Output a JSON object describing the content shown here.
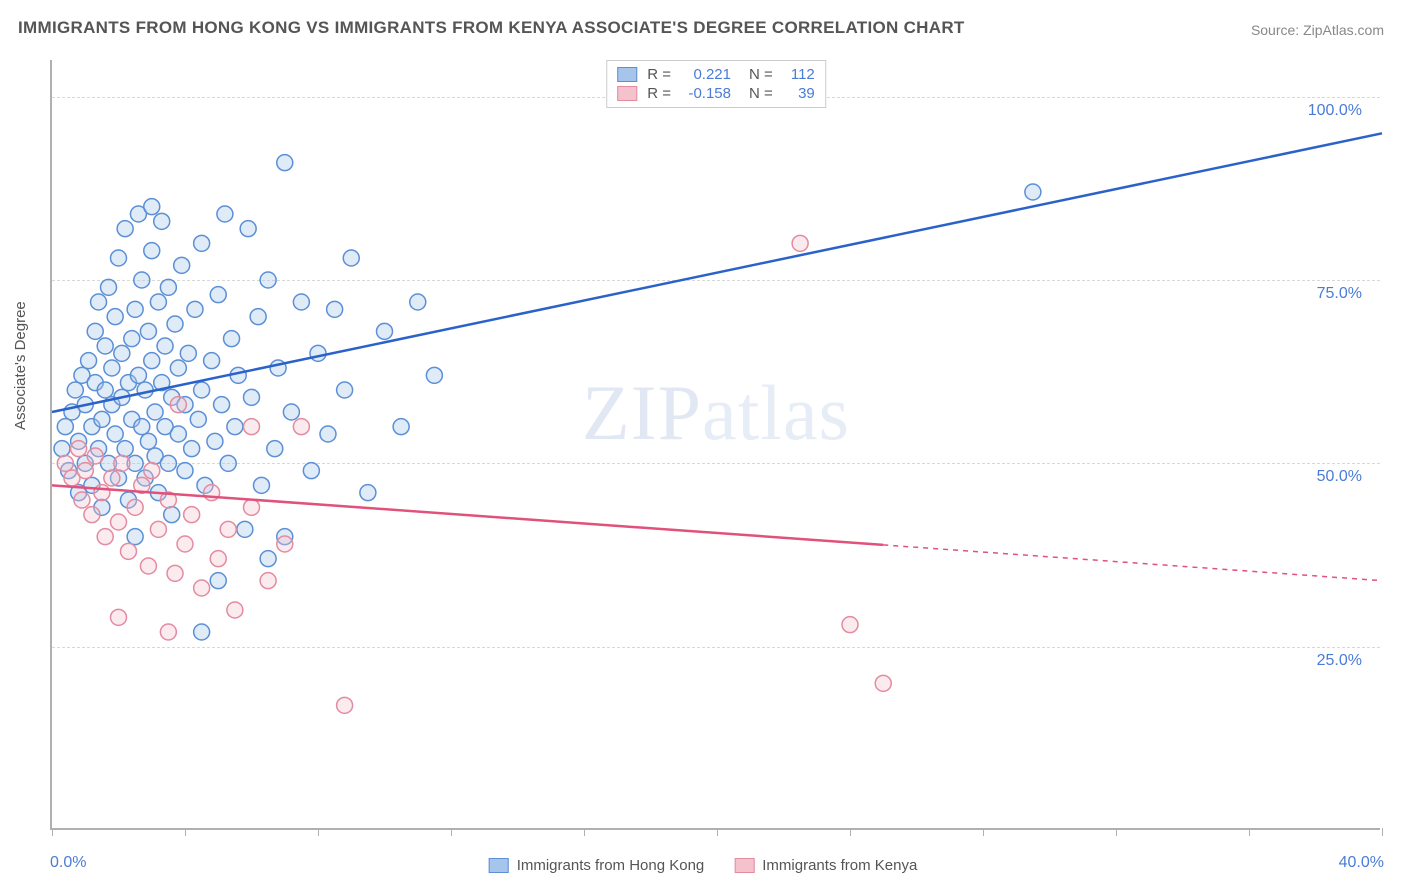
{
  "title": "IMMIGRANTS FROM HONG KONG VS IMMIGRANTS FROM KENYA ASSOCIATE'S DEGREE CORRELATION CHART",
  "source": "Source: ZipAtlas.com",
  "y_axis_title": "Associate's Degree",
  "watermark_a": "ZIP",
  "watermark_b": "atlas",
  "chart": {
    "type": "scatter",
    "xlim": [
      0,
      40
    ],
    "ylim": [
      0,
      105
    ],
    "x_ticks": [
      0,
      4,
      8,
      12,
      16,
      20,
      24,
      28,
      32,
      36,
      40
    ],
    "x_tick_labels": {
      "0": "0.0%",
      "40": "40.0%"
    },
    "y_ticks": [
      25,
      50,
      75,
      100
    ],
    "y_tick_labels": [
      "25.0%",
      "50.0%",
      "75.0%",
      "100.0%"
    ],
    "background_color": "#ffffff",
    "grid_color": "#d8d8d8",
    "axis_color": "#b0b0b0",
    "label_color": "#4a7bd8",
    "marker_radius": 8,
    "series": [
      {
        "name": "Immigrants from Hong Kong",
        "fill": "#a7c5ea",
        "stroke": "#5b8fd6",
        "line_color": "#2b62c9",
        "R": "0.221",
        "N": "112",
        "trend": {
          "x1": 0,
          "y1": 57,
          "x2": 40,
          "y2": 95,
          "solid_until": 40
        },
        "points": [
          [
            0.3,
            52
          ],
          [
            0.4,
            55
          ],
          [
            0.5,
            49
          ],
          [
            0.6,
            57
          ],
          [
            0.7,
            60
          ],
          [
            0.8,
            53
          ],
          [
            0.8,
            46
          ],
          [
            0.9,
            62
          ],
          [
            1.0,
            58
          ],
          [
            1.0,
            50
          ],
          [
            1.1,
            64
          ],
          [
            1.2,
            55
          ],
          [
            1.2,
            47
          ],
          [
            1.3,
            61
          ],
          [
            1.3,
            68
          ],
          [
            1.4,
            52
          ],
          [
            1.4,
            72
          ],
          [
            1.5,
            56
          ],
          [
            1.5,
            44
          ],
          [
            1.6,
            60
          ],
          [
            1.6,
            66
          ],
          [
            1.7,
            50
          ],
          [
            1.7,
            74
          ],
          [
            1.8,
            58
          ],
          [
            1.8,
            63
          ],
          [
            1.9,
            54
          ],
          [
            1.9,
            70
          ],
          [
            2.0,
            48
          ],
          [
            2.0,
            78
          ],
          [
            2.1,
            59
          ],
          [
            2.1,
            65
          ],
          [
            2.2,
            52
          ],
          [
            2.2,
            82
          ],
          [
            2.3,
            61
          ],
          [
            2.3,
            45
          ],
          [
            2.4,
            67
          ],
          [
            2.4,
            56
          ],
          [
            2.5,
            71
          ],
          [
            2.5,
            50
          ],
          [
            2.6,
            62
          ],
          [
            2.6,
            84
          ],
          [
            2.7,
            55
          ],
          [
            2.7,
            75
          ],
          [
            2.8,
            60
          ],
          [
            2.8,
            48
          ],
          [
            2.9,
            68
          ],
          [
            2.9,
            53
          ],
          [
            3.0,
            64
          ],
          [
            3.0,
            79
          ],
          [
            3.1,
            57
          ],
          [
            3.1,
            51
          ],
          [
            3.2,
            72
          ],
          [
            3.2,
            46
          ],
          [
            3.3,
            61
          ],
          [
            3.3,
            83
          ],
          [
            3.4,
            55
          ],
          [
            3.4,
            66
          ],
          [
            3.5,
            50
          ],
          [
            3.5,
            74
          ],
          [
            3.6,
            59
          ],
          [
            3.6,
            43
          ],
          [
            3.7,
            69
          ],
          [
            3.8,
            54
          ],
          [
            3.8,
            63
          ],
          [
            3.9,
            77
          ],
          [
            4.0,
            58
          ],
          [
            4.0,
            49
          ],
          [
            4.1,
            65
          ],
          [
            4.2,
            52
          ],
          [
            4.3,
            71
          ],
          [
            4.4,
            56
          ],
          [
            4.5,
            60
          ],
          [
            4.5,
            80
          ],
          [
            4.6,
            47
          ],
          [
            4.8,
            64
          ],
          [
            4.9,
            53
          ],
          [
            5.0,
            73
          ],
          [
            5.1,
            58
          ],
          [
            5.2,
            84
          ],
          [
            5.3,
            50
          ],
          [
            5.4,
            67
          ],
          [
            5.5,
            55
          ],
          [
            5.6,
            62
          ],
          [
            5.8,
            41
          ],
          [
            5.9,
            82
          ],
          [
            6.0,
            59
          ],
          [
            6.2,
            70
          ],
          [
            6.3,
            47
          ],
          [
            6.5,
            75
          ],
          [
            6.7,
            52
          ],
          [
            6.8,
            63
          ],
          [
            7.0,
            91
          ],
          [
            7.2,
            57
          ],
          [
            7.5,
            72
          ],
          [
            7.8,
            49
          ],
          [
            8.0,
            65
          ],
          [
            8.3,
            54
          ],
          [
            8.5,
            71
          ],
          [
            8.8,
            60
          ],
          [
            9.0,
            78
          ],
          [
            9.5,
            46
          ],
          [
            10.0,
            68
          ],
          [
            10.5,
            55
          ],
          [
            11.0,
            72
          ],
          [
            11.5,
            62
          ],
          [
            4.5,
            27
          ],
          [
            5.0,
            34
          ],
          [
            6.5,
            37
          ],
          [
            7.0,
            40
          ],
          [
            29.5,
            87
          ],
          [
            3.0,
            85
          ],
          [
            2.5,
            40
          ]
        ]
      },
      {
        "name": "Immigrants from Kenya",
        "fill": "#f4c2cd",
        "stroke": "#e38ba0",
        "line_color": "#e0517b",
        "R": "-0.158",
        "N": "39",
        "trend": {
          "x1": 0,
          "y1": 47,
          "x2": 40,
          "y2": 34,
          "solid_until": 25
        },
        "points": [
          [
            0.4,
            50
          ],
          [
            0.6,
            48
          ],
          [
            0.8,
            52
          ],
          [
            0.9,
            45
          ],
          [
            1.0,
            49
          ],
          [
            1.2,
            43
          ],
          [
            1.3,
            51
          ],
          [
            1.5,
            46
          ],
          [
            1.6,
            40
          ],
          [
            1.8,
            48
          ],
          [
            2.0,
            42
          ],
          [
            2.1,
            50
          ],
          [
            2.3,
            38
          ],
          [
            2.5,
            44
          ],
          [
            2.7,
            47
          ],
          [
            2.9,
            36
          ],
          [
            3.0,
            49
          ],
          [
            3.2,
            41
          ],
          [
            3.5,
            45
          ],
          [
            3.7,
            35
          ],
          [
            3.8,
            58
          ],
          [
            4.0,
            39
          ],
          [
            4.2,
            43
          ],
          [
            4.5,
            33
          ],
          [
            4.8,
            46
          ],
          [
            5.0,
            37
          ],
          [
            5.3,
            41
          ],
          [
            5.5,
            30
          ],
          [
            6.0,
            44
          ],
          [
            6.5,
            34
          ],
          [
            7.0,
            39
          ],
          [
            7.5,
            55
          ],
          [
            2.0,
            29
          ],
          [
            3.5,
            27
          ],
          [
            8.8,
            17
          ],
          [
            6.0,
            55
          ],
          [
            22.5,
            80
          ],
          [
            24.0,
            28
          ],
          [
            25.0,
            20
          ]
        ]
      }
    ]
  },
  "legend_top_rows": [
    {
      "swatch_fill": "#a7c5ea",
      "swatch_stroke": "#5b8fd6",
      "r_label": "R =",
      "r_val": "0.221",
      "n_label": "N =",
      "n_val": "112"
    },
    {
      "swatch_fill": "#f4c2cd",
      "swatch_stroke": "#e38ba0",
      "r_label": "R =",
      "r_val": "-0.158",
      "n_label": "N =",
      "n_val": "39"
    }
  ],
  "legend_bottom": [
    {
      "swatch_fill": "#a7c5ea",
      "swatch_stroke": "#5b8fd6",
      "label": "Immigrants from Hong Kong"
    },
    {
      "swatch_fill": "#f4c2cd",
      "swatch_stroke": "#e38ba0",
      "label": "Immigrants from Kenya"
    }
  ]
}
